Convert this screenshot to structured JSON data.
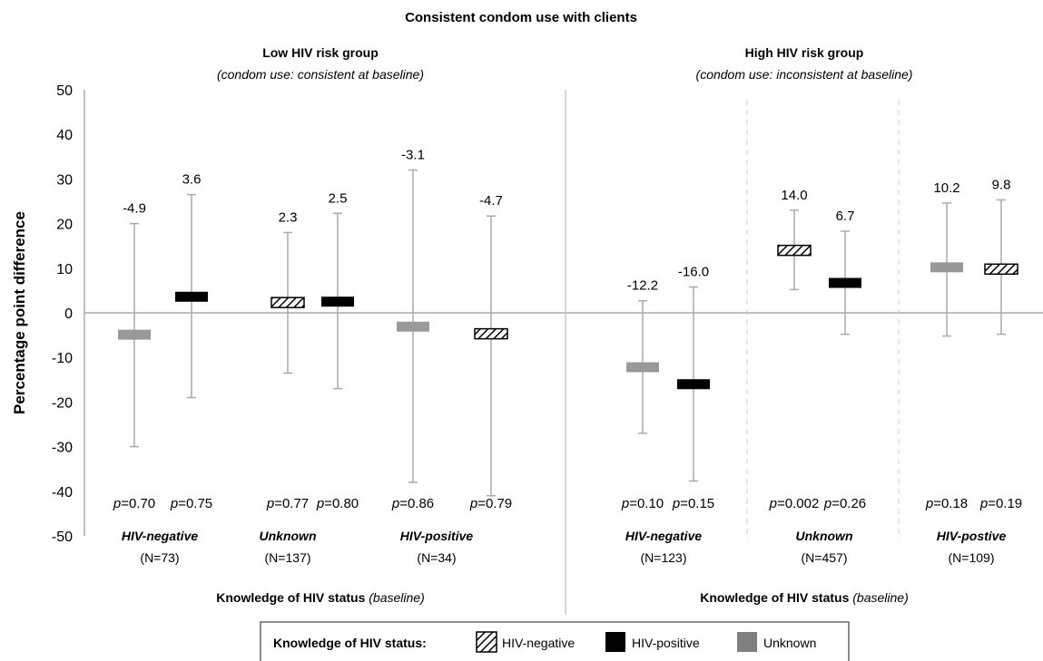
{
  "chart_data": {
    "type": "error-bar",
    "title": "Consistent condom use with clients",
    "ylabel": "Percentage point difference",
    "ylim": [
      -50,
      50
    ],
    "yticks": [
      50,
      40,
      30,
      20,
      10,
      0,
      -10,
      -20,
      -30,
      -40,
      -50
    ],
    "colors": {
      "hiv_negative": "hatched",
      "hiv_positive": "#000000",
      "unknown": "#999999",
      "axis": "#aaaaaa"
    },
    "groups": [
      {
        "title": "Low HIV risk group",
        "subtitle": "(condom use: consistent at baseline)",
        "xlabel_bold": "Knowledge of HIV status",
        "xlabel_italic": "(baseline)",
        "categories": [
          {
            "name": "HIV-negative",
            "n": "(N=73)",
            "points": [
              {
                "series": "Unknown",
                "value": -4.9,
                "label": "-4.9",
                "ci": [
                  -30,
                  20
                ],
                "p": "=0.70"
              },
              {
                "series": "HIV-positive",
                "value": 3.6,
                "label": "3.6",
                "ci": [
                  -19,
                  26.5
                ],
                "p": "=0.75"
              }
            ]
          },
          {
            "name": "Unknown",
            "n": "(N=137)",
            "points": [
              {
                "series": "HIV-negative",
                "value": 2.3,
                "label": "2.3",
                "ci": [
                  -13.5,
                  18
                ],
                "p": "=0.77"
              },
              {
                "series": "HIV-positive",
                "value": 2.5,
                "label": "2.5",
                "ci": [
                  -17,
                  22.3
                ],
                "p": "=0.80"
              }
            ]
          },
          {
            "name": "HIV-positive",
            "n": "(N=34)",
            "points": [
              {
                "series": "Unknown",
                "value": -3.1,
                "label": "-3.1",
                "ci": [
                  -38,
                  32
                ],
                "p": "=0.86"
              },
              {
                "series": "HIV-negative",
                "value": -4.7,
                "label": "-4.7",
                "ci": [
                  -41,
                  21.7
                ],
                "p": "=0.79"
              }
            ]
          }
        ]
      },
      {
        "title": "High HIV risk group",
        "subtitle": "(condom use: inconsistent at baseline)",
        "xlabel_bold": "Knowledge of HIV status",
        "xlabel_italic": "(baseline)",
        "categories": [
          {
            "name": "HIV-negative",
            "n": "(N=123)",
            "points": [
              {
                "series": "Unknown",
                "value": -12.2,
                "label": "-12.2",
                "ci": [
                  -27,
                  2.7
                ],
                "p": "=0.10"
              },
              {
                "series": "HIV-positive",
                "value": -16.0,
                "label": "-16.0",
                "ci": [
                  -37.7,
                  5.8
                ],
                "p": "=0.15"
              }
            ]
          },
          {
            "name": "Unknown",
            "n": "(N=457)",
            "points": [
              {
                "series": "HIV-negative",
                "value": 14.0,
                "label": "14.0",
                "ci": [
                  5.2,
                  23
                ],
                "p": "=0.002"
              },
              {
                "series": "HIV-positive",
                "value": 6.7,
                "label": "6.7",
                "ci": [
                  -4.8,
                  18.3
                ],
                "p": "=0.26"
              }
            ]
          },
          {
            "name": "HIV-postive",
            "n": "(N=109)",
            "points": [
              {
                "series": "Unknown",
                "value": 10.2,
                "label": "10.2",
                "ci": [
                  -5.2,
                  24.6
                ],
                "p": "=0.18"
              },
              {
                "series": "HIV-negative",
                "value": 9.8,
                "label": "9.8",
                "ci": [
                  -4.8,
                  25.3
                ],
                "p": "=0.19"
              }
            ]
          }
        ]
      }
    ],
    "p_prefix": "p",
    "legend": {
      "title": "Knowledge of HIV status:",
      "items": [
        {
          "label": "HIV-negative",
          "series": "HIV-negative"
        },
        {
          "label": "HIV-positive",
          "series": "HIV-positive"
        },
        {
          "label": "Unknown",
          "series": "Unknown"
        }
      ]
    }
  }
}
